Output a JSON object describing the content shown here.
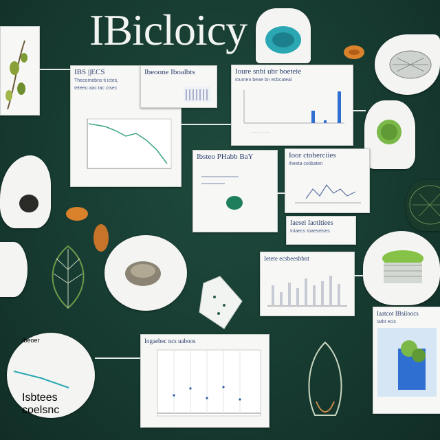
{
  "title": "IBicloicy",
  "colors": {
    "background": "#163a30",
    "card": "#f7f8f6",
    "heading": "#2a3c6a",
    "bar": "#2f6fd2",
    "line": "#3aa57a",
    "leaf": "#7bb84a",
    "seed": "#d9822b"
  },
  "cards": {
    "top_chart": {
      "heading": "IBS ||ECS",
      "heading2": "Ibeoone Iboalbts",
      "sub1": "Thecomebns ti ictes,",
      "sub2": "Ieteeu aac tac ctsec"
    },
    "bar_top": {
      "heading": "Ioure snbi ubr boeteie",
      "sub": "Ioumen beae bn ecbcateal"
    },
    "mid_left": {
      "heading": "Ibsteo PHabb BaY"
    },
    "mid_right": {
      "heading": "Ioor ctoberciies",
      "sub": "Iheeta coiibaten"
    },
    "small_caption": {
      "heading": "Iaesei Iaotitiees",
      "sub": "Iniaecs Ioaeseises"
    },
    "bar_mid": {
      "heading": "Ietete ecsbeesbbnt"
    },
    "bottom_chart": {
      "heading": "Iogaebec ncs uaboos"
    },
    "right_bottom": {
      "heading": "Iaatcot IBsiloocs",
      "sub": "Iatbt ecis"
    },
    "bottom_left": {
      "heading": "Ibeoer",
      "sub": "Isbtees coelsnc"
    }
  }
}
